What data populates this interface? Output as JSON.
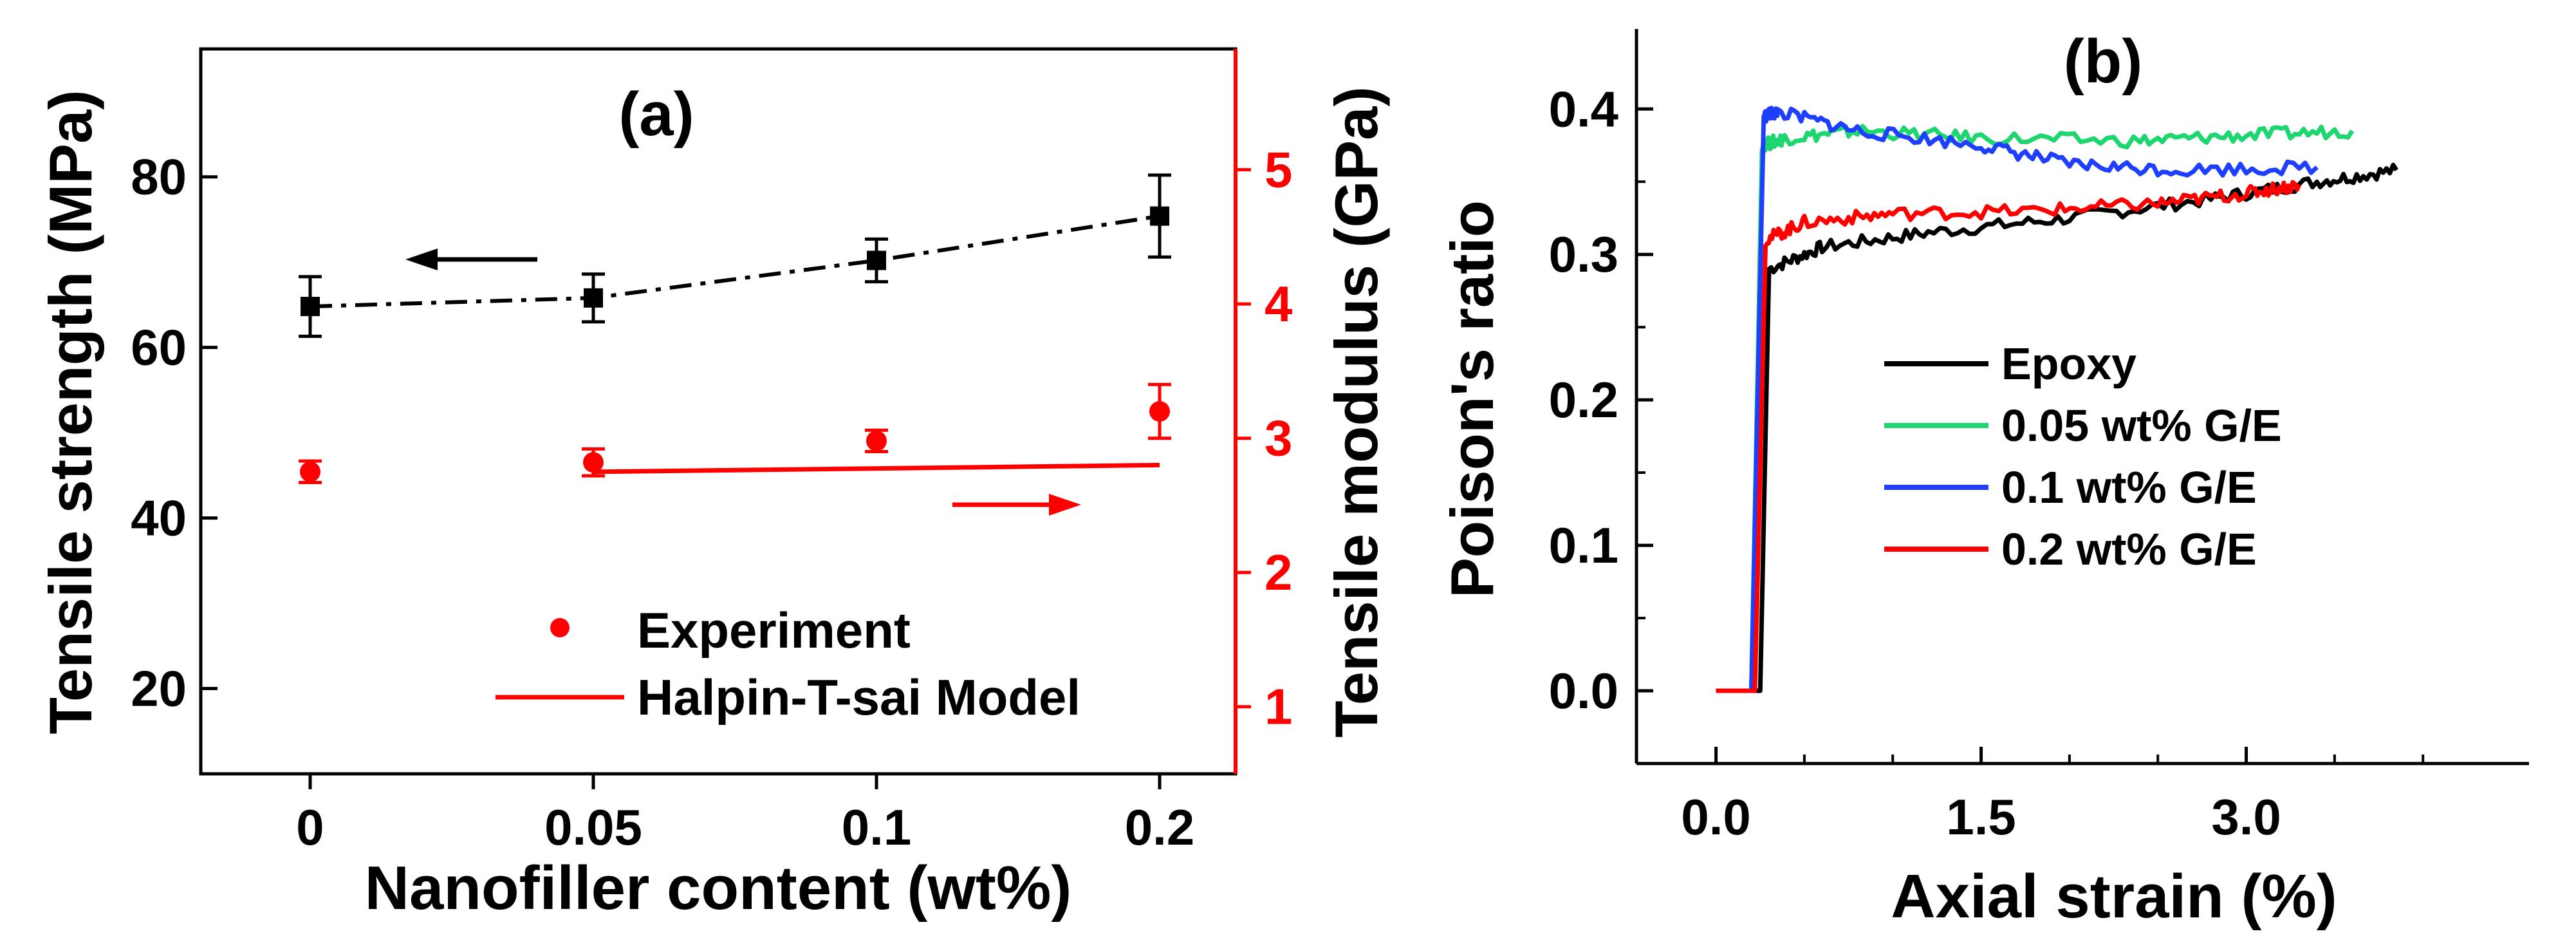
{
  "chart_data": [
    {
      "id": "a",
      "type": "scatter",
      "panel_label": "(a)",
      "xlabel": "Nanofiller content (wt%)",
      "ylabel": "Tensile strength (MPa)",
      "ylabel_right": "Tensile modulus (GPa)",
      "x_categories": [
        "0",
        "0.05",
        "0.1",
        "0.2"
      ],
      "ylim": [
        10,
        95
      ],
      "yticks": [
        20,
        40,
        60,
        80
      ],
      "ylim_right": [
        0.5,
        5.9
      ],
      "yticks_right": [
        1,
        2,
        3,
        4,
        5
      ],
      "strength": {
        "values": [
          64.8,
          65.8,
          70.2,
          75.4
        ],
        "errors": [
          3.5,
          2.8,
          2.5,
          4.8
        ],
        "color": "#000000"
      },
      "modulus_experiment": {
        "name": "Experiment",
        "values": [
          2.75,
          2.82,
          2.98,
          3.2
        ],
        "errors": [
          0.08,
          0.1,
          0.08,
          0.2
        ],
        "color": "#ff0000"
      },
      "modulus_model": {
        "name": "Halpin-T-sai Model",
        "x_from": "0.05",
        "x_to": "0.2",
        "values": [
          2.75,
          2.8
        ],
        "color": "#ff0000"
      }
    },
    {
      "id": "b",
      "type": "line",
      "panel_label": "(b)",
      "xlabel": "Axial strain (%)",
      "ylabel": "Poison's ratio",
      "xlim": [
        -0.45,
        4.6
      ],
      "ylim": [
        -0.05,
        0.455
      ],
      "xticks": [
        "0.0",
        "1.5",
        "3.0"
      ],
      "yticks": [
        "0.0",
        "0.1",
        "0.2",
        "0.3",
        "0.4"
      ],
      "series": [
        {
          "name": "Epoxy",
          "color": "#000000",
          "x": [
            0,
            0.25,
            0.3,
            0.6,
            1.2,
            2.0,
            2.8,
            3.4,
            3.85
          ],
          "y": [
            0,
            0,
            0.29,
            0.305,
            0.315,
            0.325,
            0.338,
            0.35,
            0.358
          ]
        },
        {
          "name": "0.05 wt% G/E",
          "color": "#1ed66f",
          "x": [
            0,
            0.2,
            0.26,
            0.4,
            0.8,
            1.5,
            2.4,
            3.0,
            3.6
          ],
          "y": [
            0,
            0,
            0.375,
            0.38,
            0.385,
            0.38,
            0.378,
            0.382,
            0.385
          ]
        },
        {
          "name": "0.1 wt% G/E",
          "color": "#1f3fff",
          "x": [
            0,
            0.2,
            0.27,
            0.35,
            0.8,
            1.5,
            2.0,
            2.6,
            3.4
          ],
          "y": [
            0,
            0,
            0.395,
            0.398,
            0.385,
            0.375,
            0.362,
            0.358,
            0.36
          ]
        },
        {
          "name": "0.2 wt% G/E",
          "color": "#ff0000",
          "x": [
            0,
            0.22,
            0.28,
            0.5,
            1.0,
            1.8,
            2.5,
            3.0,
            3.3
          ],
          "y": [
            0,
            0,
            0.31,
            0.322,
            0.328,
            0.33,
            0.335,
            0.342,
            0.348
          ]
        }
      ]
    }
  ]
}
